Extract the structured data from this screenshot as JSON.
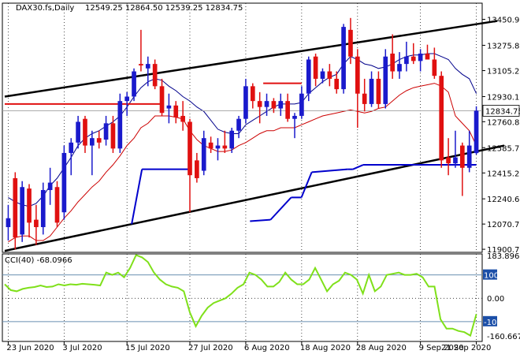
{
  "window": {
    "symbol_title": "DAX30.fs,Daily",
    "ohlc_text": "12549.25 12864.50 12539.25 12834.75"
  },
  "colors": {
    "background": "#ffffff",
    "bull_candle": "#1a1acc",
    "bear_candle": "#e01010",
    "upper_band": "#00008b",
    "lower_band": "#cc0000",
    "support_line": "#0000cc",
    "trendline": "#000000",
    "resistance_marker": "#e01010",
    "cci_line": "#7fe01a",
    "price_highlight_bg": "#ffffff",
    "grid_dots": "#000000"
  },
  "chart_data": [
    {
      "type": "candlestick",
      "title": "DAX30.fs,Daily",
      "last_price": "12834.75",
      "y_ticks": [
        "13450.90",
        "13275.80",
        "13105.25",
        "12930.15",
        "12760.80",
        "12585.70",
        "12415.25",
        "12240.65",
        "12070.70",
        "11900.70"
      ],
      "x_ticks": [
        "23 Jun 2020",
        "3 Jul 2020",
        "15 Jul 2020",
        "27 Jul 2020",
        "6 Aug 2020",
        "18 Aug 2020",
        "28 Aug 2020",
        "9 Sep 2020",
        "21 Sep 2020"
      ],
      "ylim": [
        11880,
        13560
      ],
      "candles": [
        {
          "o": 12050,
          "h": 12200,
          "l": 11960,
          "c": 12110
        },
        {
          "o": 12380,
          "h": 12420,
          "l": 11900,
          "c": 11980
        },
        {
          "o": 12000,
          "h": 12360,
          "l": 11950,
          "c": 12320
        },
        {
          "o": 12310,
          "h": 12340,
          "l": 11980,
          "c": 12080
        },
        {
          "o": 12100,
          "h": 12200,
          "l": 11930,
          "c": 12050
        },
        {
          "o": 12050,
          "h": 12350,
          "l": 12000,
          "c": 12300
        },
        {
          "o": 12300,
          "h": 12450,
          "l": 12200,
          "c": 12350
        },
        {
          "o": 12320,
          "h": 12360,
          "l": 12050,
          "c": 12080
        },
        {
          "o": 12150,
          "h": 12600,
          "l": 12100,
          "c": 12550
        },
        {
          "o": 12550,
          "h": 12650,
          "l": 12400,
          "c": 12620
        },
        {
          "o": 12620,
          "h": 12800,
          "l": 12580,
          "c": 12760
        },
        {
          "o": 12780,
          "h": 12800,
          "l": 12550,
          "c": 12600
        },
        {
          "o": 12600,
          "h": 12700,
          "l": 12400,
          "c": 12650
        },
        {
          "o": 12650,
          "h": 12700,
          "l": 12580,
          "c": 12620
        },
        {
          "o": 12640,
          "h": 12800,
          "l": 12600,
          "c": 12750
        },
        {
          "o": 12750,
          "h": 12800,
          "l": 12550,
          "c": 12580
        },
        {
          "o": 12580,
          "h": 12950,
          "l": 12550,
          "c": 12900
        },
        {
          "o": 12900,
          "h": 12960,
          "l": 12800,
          "c": 12930
        },
        {
          "o": 12930,
          "h": 13120,
          "l": 12900,
          "c": 13100
        },
        {
          "o": 13150,
          "h": 13380,
          "l": 13100,
          "c": 13140
        },
        {
          "o": 13120,
          "h": 13200,
          "l": 13000,
          "c": 13150
        },
        {
          "o": 13150,
          "h": 13180,
          "l": 12980,
          "c": 13000
        },
        {
          "o": 13000,
          "h": 13050,
          "l": 12800,
          "c": 12820
        },
        {
          "o": 12850,
          "h": 12950,
          "l": 12750,
          "c": 12870
        },
        {
          "o": 12870,
          "h": 12900,
          "l": 12750,
          "c": 12790
        },
        {
          "o": 12800,
          "h": 12900,
          "l": 12700,
          "c": 12760
        },
        {
          "o": 12760,
          "h": 12780,
          "l": 12150,
          "c": 12400
        },
        {
          "o": 12500,
          "h": 12550,
          "l": 12350,
          "c": 12380
        },
        {
          "o": 12430,
          "h": 12700,
          "l": 12400,
          "c": 12650
        },
        {
          "o": 12620,
          "h": 12660,
          "l": 12550,
          "c": 12580
        },
        {
          "o": 12580,
          "h": 12650,
          "l": 12500,
          "c": 12600
        },
        {
          "o": 12600,
          "h": 12700,
          "l": 12550,
          "c": 12580
        },
        {
          "o": 12580,
          "h": 12720,
          "l": 12550,
          "c": 12700
        },
        {
          "o": 12700,
          "h": 12800,
          "l": 12650,
          "c": 12780
        },
        {
          "o": 12780,
          "h": 13050,
          "l": 12750,
          "c": 13000
        },
        {
          "o": 13000,
          "h": 13020,
          "l": 12850,
          "c": 12900
        },
        {
          "o": 12900,
          "h": 12960,
          "l": 12750,
          "c": 12860
        },
        {
          "o": 12860,
          "h": 12950,
          "l": 12800,
          "c": 12900
        },
        {
          "o": 12900,
          "h": 12920,
          "l": 12820,
          "c": 12850
        },
        {
          "o": 12850,
          "h": 12950,
          "l": 12800,
          "c": 12900
        },
        {
          "o": 12900,
          "h": 12950,
          "l": 12760,
          "c": 12780
        },
        {
          "o": 12780,
          "h": 12820,
          "l": 12650,
          "c": 12800
        },
        {
          "o": 12800,
          "h": 13000,
          "l": 12780,
          "c": 12950
        },
        {
          "o": 12950,
          "h": 13200,
          "l": 12900,
          "c": 13180
        },
        {
          "o": 13200,
          "h": 13220,
          "l": 13000,
          "c": 13050
        },
        {
          "o": 13050,
          "h": 13120,
          "l": 13020,
          "c": 13100
        },
        {
          "o": 13100,
          "h": 13150,
          "l": 13000,
          "c": 13050
        },
        {
          "o": 13050,
          "h": 13100,
          "l": 12950,
          "c": 12980
        },
        {
          "o": 12980,
          "h": 13420,
          "l": 12950,
          "c": 13400
        },
        {
          "o": 13380,
          "h": 13460,
          "l": 13150,
          "c": 13200
        },
        {
          "o": 13200,
          "h": 13250,
          "l": 12720,
          "c": 12950
        },
        {
          "o": 12950,
          "h": 13050,
          "l": 12830,
          "c": 12880
        },
        {
          "o": 12880,
          "h": 13100,
          "l": 12860,
          "c": 13050
        },
        {
          "o": 13050,
          "h": 13100,
          "l": 12850,
          "c": 12880
        },
        {
          "o": 12880,
          "h": 13250,
          "l": 12850,
          "c": 13200
        },
        {
          "o": 13220,
          "h": 13350,
          "l": 13050,
          "c": 13100
        },
        {
          "o": 13100,
          "h": 13230,
          "l": 13050,
          "c": 13150
        },
        {
          "o": 13150,
          "h": 13300,
          "l": 13100,
          "c": 13200
        },
        {
          "o": 13200,
          "h": 13290,
          "l": 13150,
          "c": 13170
        },
        {
          "o": 13170,
          "h": 13250,
          "l": 13100,
          "c": 13220
        },
        {
          "o": 13220,
          "h": 13280,
          "l": 13180,
          "c": 13180
        },
        {
          "o": 13180,
          "h": 13260,
          "l": 13050,
          "c": 13070
        },
        {
          "o": 13070,
          "h": 13100,
          "l": 12450,
          "c": 12500
        },
        {
          "o": 12520,
          "h": 12650,
          "l": 12400,
          "c": 12480
        },
        {
          "o": 12480,
          "h": 12700,
          "l": 12450,
          "c": 12520
        },
        {
          "o": 12600,
          "h": 12620,
          "l": 12260,
          "c": 12450
        },
        {
          "o": 12450,
          "h": 12700,
          "l": 12420,
          "c": 12600
        },
        {
          "o": 12549.25,
          "h": 12864.5,
          "l": 12539.25,
          "c": 12834.75
        }
      ],
      "upper_band": [
        12250,
        12220,
        12200,
        12190,
        12210,
        12260,
        12330,
        12380,
        12450,
        12520,
        12600,
        12650,
        12680,
        12700,
        12730,
        12760,
        12800,
        12860,
        12930,
        12990,
        13030,
        13050,
        13040,
        13000,
        12970,
        12930,
        12900,
        12860,
        12830,
        12770,
        12710,
        12690,
        12680,
        12680,
        12740,
        12770,
        12800,
        12830,
        12860,
        12880,
        12880,
        12880,
        12890,
        12950,
        12990,
        13030,
        13060,
        13080,
        13150,
        13200,
        13180,
        13150,
        13140,
        13120,
        13130,
        13150,
        13180,
        13200,
        13210,
        13210,
        13220,
        13220,
        13200,
        13180,
        13120,
        13080,
        13050,
        12950,
        12930
      ],
      "lower_band": [
        11950,
        11980,
        11990,
        11990,
        11960,
        11960,
        11990,
        12050,
        12110,
        12160,
        12220,
        12270,
        12320,
        12360,
        12420,
        12470,
        12530,
        12600,
        12650,
        12720,
        12750,
        12800,
        12800,
        12800,
        12790,
        12780,
        12700,
        12640,
        12600,
        12580,
        12560,
        12560,
        12570,
        12600,
        12620,
        12650,
        12680,
        12700,
        12700,
        12720,
        12720,
        12720,
        12740,
        12760,
        12780,
        12800,
        12810,
        12820,
        12830,
        12840,
        12830,
        12820,
        12830,
        12850,
        12860,
        12900,
        12940,
        12970,
        12990,
        13000,
        13010,
        13020,
        13000,
        12960,
        12800,
        12750,
        12700,
        12600,
        12550
      ],
      "support_line": {
        "start_index": 24,
        "values": [
          12070,
          12070,
          12440,
          12440,
          12440,
          12440,
          12440,
          12440,
          12440,
          12440,
          12440,
          12440,
          12440,
          12440,
          12440,
          12440,
          12440,
          12440,
          12440,
          12440,
          12440,
          12440,
          12440,
          12440,
          12440,
          12440,
          12440,
          12440,
          12440,
          12440,
          12440,
          12440,
          12440,
          12440,
          12440,
          12440,
          12440,
          12440,
          12440,
          12440,
          12440,
          12440,
          12440,
          12440,
          12440,
          12440,
          12440,
          12440,
          12440,
          12440,
          12440,
          12440,
          12440,
          12440,
          12440,
          12440,
          12440,
          12440,
          12440,
          12440,
          12440,
          12440,
          12440,
          12440
        ]
      },
      "support_segments": [
        {
          "i0": 24,
          "v0": 12070,
          "i1": 26,
          "v1": 12440
        },
        {
          "i0": 26,
          "v0": 12440,
          "i1": 35,
          "v1": 12440
        },
        {
          "i0": 47,
          "v0": 12090,
          "i1": 51,
          "v1": 12100
        },
        {
          "i0": 51,
          "v0": 12100,
          "i1": 55,
          "v1": 12250
        },
        {
          "i0": 55,
          "v0": 12250,
          "i1": 57,
          "v1": 12250
        },
        {
          "i0": 57,
          "v0": 12250,
          "i1": 59,
          "v1": 12420
        },
        {
          "i0": 59,
          "v0": 12420,
          "i1": 66,
          "v1": 12440
        },
        {
          "i0": 66,
          "v0": 12440,
          "i1": 67,
          "v1": 12440
        },
        {
          "i0": 67,
          "v0": 12440,
          "i1": 69,
          "v1": 12470
        },
        {
          "i0": 69,
          "v0": 12470,
          "i1": 91,
          "v1": 12470
        }
      ],
      "trendlines": [
        {
          "i0": 0,
          "v0": 12930,
          "i1": 70,
          "v1": 13440
        },
        {
          "i0": 0,
          "v0": 11890,
          "i1": 71,
          "v1": 12600
        }
      ],
      "resistance_segments": [
        {
          "i0": 0,
          "v0": 12880,
          "i1": 22,
          "v1": 12880
        },
        {
          "i0": 37,
          "v0": 13020,
          "i1": 42,
          "v1": 13020
        }
      ]
    },
    {
      "type": "line",
      "title": "CCI(40) -68.0966",
      "y_ticks": [
        "183.8969",
        "100",
        "0.00",
        "-100",
        "-160.6677"
      ],
      "level_lines": [
        100,
        -100
      ],
      "ylim": [
        -185,
        190
      ],
      "series": [
        {
          "name": "CCI(40)",
          "values": [
            60,
            35,
            30,
            40,
            45,
            48,
            55,
            48,
            50,
            60,
            55,
            60,
            58,
            62,
            60,
            58,
            55,
            110,
            100,
            110,
            90,
            130,
            185,
            175,
            155,
            110,
            80,
            60,
            50,
            45,
            30,
            -60,
            -120,
            -75,
            -40,
            -20,
            -10,
            0,
            20,
            45,
            60,
            110,
            100,
            80,
            50,
            50,
            70,
            110,
            80,
            60,
            60,
            80,
            130,
            80,
            30,
            60,
            75,
            110,
            100,
            80,
            20,
            100,
            30,
            50,
            100,
            105,
            110,
            100,
            100,
            105,
            90,
            50,
            50,
            -90,
            -130,
            -130,
            -140,
            -145,
            -160,
            -68
          ]
        }
      ]
    }
  ]
}
